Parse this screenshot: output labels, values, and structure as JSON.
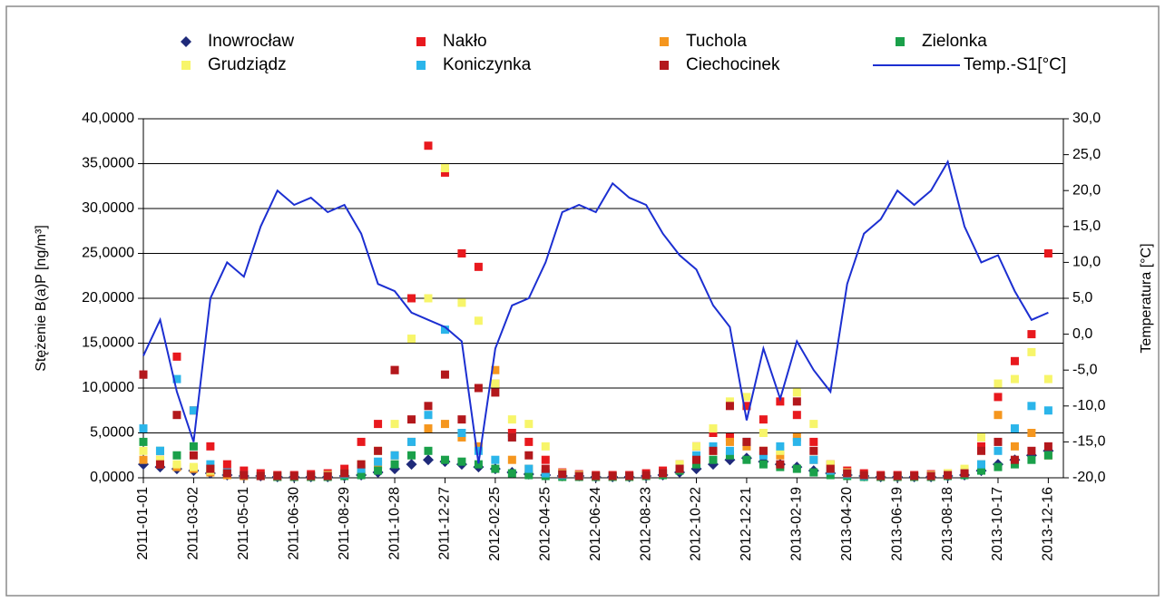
{
  "chart_data": {
    "type": "scatter",
    "ylabel": "Stężenie B(a)P [ng/m³]",
    "y2label": "Temperatura [°C]",
    "xlim": [
      "2011-01-01",
      "2014-01-03"
    ],
    "xticks": [
      "2011-01-01",
      "2011-03-02",
      "2011-05-01",
      "2011-06-30",
      "2011-08-29",
      "2011-10-28",
      "2011-12-27",
      "2012-02-25",
      "2012-04-25",
      "2012-06-24",
      "2012-08-23",
      "2012-10-22",
      "2012-12-21",
      "2013-02-19",
      "2013-04-20",
      "2013-06-19",
      "2013-08-18",
      "2013-10-17",
      "2013-12-16"
    ],
    "ylim": [
      0,
      40
    ],
    "yticks": [
      {
        "value": 0,
        "label": "0,0000"
      },
      {
        "value": 5,
        "label": "5,0000"
      },
      {
        "value": 10,
        "label": "10,0000"
      },
      {
        "value": 15,
        "label": "15,0000"
      },
      {
        "value": 20,
        "label": "20,0000"
      },
      {
        "value": 25,
        "label": "25,0000"
      },
      {
        "value": 30,
        "label": "30,0000"
      },
      {
        "value": 35,
        "label": "35,0000"
      },
      {
        "value": 40,
        "label": "40,0000"
      }
    ],
    "y2lim": [
      -20,
      30
    ],
    "y2ticks": [
      {
        "value": -20,
        "label": "-20,0"
      },
      {
        "value": -15,
        "label": "-15,0"
      },
      {
        "value": -10,
        "label": "-10,0"
      },
      {
        "value": -5,
        "label": "-5,0"
      },
      {
        "value": 0,
        "label": "0,0"
      },
      {
        "value": 5,
        "label": "5,0"
      },
      {
        "value": 10,
        "label": "10,0"
      },
      {
        "value": 15,
        "label": "15,0"
      },
      {
        "value": 20,
        "label": "20,0"
      },
      {
        "value": 25,
        "label": "25,0"
      },
      {
        "value": 30,
        "label": "30,0"
      }
    ],
    "grid": true,
    "x": [
      "2011-01-01",
      "2011-01-21",
      "2011-02-10",
      "2011-03-02",
      "2011-03-22",
      "2011-04-11",
      "2011-05-01",
      "2011-05-21",
      "2011-06-10",
      "2011-06-30",
      "2011-07-20",
      "2011-08-09",
      "2011-08-29",
      "2011-09-18",
      "2011-10-08",
      "2011-10-28",
      "2011-11-17",
      "2011-12-07",
      "2011-12-27",
      "2012-01-16",
      "2012-02-05",
      "2012-02-25",
      "2012-03-16",
      "2012-04-05",
      "2012-04-25",
      "2012-05-15",
      "2012-06-04",
      "2012-06-24",
      "2012-07-14",
      "2012-08-03",
      "2012-08-23",
      "2012-09-12",
      "2012-10-02",
      "2012-10-22",
      "2012-11-11",
      "2012-12-01",
      "2012-12-21",
      "2013-01-10",
      "2013-01-30",
      "2013-02-19",
      "2013-03-11",
      "2013-03-31",
      "2013-04-20",
      "2013-05-10",
      "2013-05-30",
      "2013-06-19",
      "2013-07-09",
      "2013-07-29",
      "2013-08-18",
      "2013-09-07",
      "2013-09-27",
      "2013-10-17",
      "2013-11-06",
      "2013-11-26",
      "2013-12-16"
    ],
    "series": [
      {
        "name": "Inowrocław",
        "color": "#1f2a7a",
        "marker": "diamond",
        "values": [
          1.5,
          1.2,
          1.0,
          0.8,
          0.5,
          0.3,
          0.2,
          0.2,
          0.1,
          0.1,
          0.1,
          0.1,
          0.2,
          0.3,
          0.6,
          1.0,
          1.5,
          2.0,
          1.8,
          1.5,
          1.2,
          1.0,
          0.6,
          0.4,
          0.3,
          0.2,
          0.2,
          0.1,
          0.1,
          0.1,
          0.2,
          0.3,
          0.6,
          1.0,
          1.5,
          2.0,
          2.2,
          1.8,
          1.5,
          1.2,
          0.8,
          0.5,
          0.3,
          0.2,
          0.1,
          0.1,
          0.1,
          0.1,
          0.2,
          0.3,
          0.8,
          1.5,
          2.0,
          2.5,
          3.0
        ]
      },
      {
        "name": "Nakło",
        "color": "#e8191e",
        "marker": "square",
        "values": [
          11.5,
          2.0,
          13.5,
          7.5,
          3.5,
          1.5,
          0.8,
          0.5,
          0.3,
          0.3,
          0.4,
          0.5,
          1.0,
          4.0,
          6.0,
          12.0,
          20.0,
          37.0,
          34.0,
          25.0,
          23.5,
          10.5,
          5.0,
          4.0,
          2.0,
          0.6,
          0.4,
          0.3,
          0.3,
          0.3,
          0.5,
          0.8,
          1.5,
          3.5,
          5.0,
          4.5,
          8.0,
          6.5,
          8.5,
          7.0,
          4.0,
          1.5,
          0.8,
          0.5,
          0.3,
          0.3,
          0.3,
          0.4,
          0.5,
          0.8,
          3.5,
          9.0,
          13.0,
          16.0,
          25.0
        ]
      },
      {
        "name": "Tuchola",
        "color": "#f5961e",
        "marker": "square",
        "values": [
          2.0,
          1.5,
          1.2,
          1.0,
          0.6,
          0.3,
          0.2,
          0.2,
          0.1,
          0.1,
          0.1,
          0.2,
          0.3,
          0.8,
          1.5,
          2.5,
          4.0,
          5.5,
          6.0,
          4.5,
          3.5,
          12.0,
          2.0,
          1.0,
          0.5,
          0.3,
          0.2,
          0.1,
          0.1,
          0.1,
          0.2,
          0.4,
          1.0,
          2.0,
          3.0,
          4.0,
          3.5,
          3.0,
          2.5,
          4.5,
          2.0,
          1.0,
          0.5,
          0.2,
          0.1,
          0.1,
          0.1,
          0.2,
          0.3,
          0.5,
          1.5,
          7.0,
          3.5,
          5.0,
          2.5
        ]
      },
      {
        "name": "Zielonka",
        "color": "#1aa04a",
        "marker": "square",
        "values": [
          4.0,
          3.0,
          2.5,
          3.5,
          1.0,
          0.5,
          0.3,
          0.2,
          0.1,
          0.1,
          0.1,
          0.1,
          0.2,
          0.3,
          0.8,
          1.5,
          2.5,
          3.0,
          2.0,
          1.8,
          1.5,
          1.0,
          0.5,
          0.3,
          0.2,
          0.1,
          0.1,
          0.1,
          0.1,
          0.1,
          0.2,
          0.3,
          0.8,
          1.5,
          2.0,
          2.5,
          2.0,
          1.5,
          1.2,
          1.0,
          0.6,
          0.3,
          0.2,
          0.1,
          0.1,
          0.1,
          0.1,
          0.1,
          0.2,
          0.3,
          0.8,
          1.2,
          1.5,
          2.0,
          2.5
        ]
      },
      {
        "name": "Grudziądz",
        "color": "#f7f56a",
        "marker": "square",
        "values": [
          3.0,
          2.0,
          1.5,
          1.2,
          0.8,
          0.5,
          0.3,
          0.2,
          0.2,
          0.2,
          0.2,
          0.3,
          0.5,
          1.5,
          3.0,
          6.0,
          15.5,
          20.0,
          34.5,
          19.5,
          17.5,
          10.5,
          6.5,
          6.0,
          3.5,
          0.5,
          0.3,
          0.2,
          0.2,
          0.2,
          0.3,
          0.5,
          1.5,
          3.5,
          5.5,
          8.5,
          9.0,
          5.0,
          3.0,
          9.5,
          6.0,
          1.5,
          0.6,
          0.3,
          0.2,
          0.2,
          0.2,
          0.3,
          0.5,
          1.0,
          4.5,
          10.5,
          11.0,
          14.0,
          11.0
        ]
      },
      {
        "name": "Koniczynka",
        "color": "#2bb5ea",
        "marker": "square",
        "values": [
          5.5,
          3.0,
          11.0,
          7.5,
          1.5,
          0.6,
          0.3,
          0.2,
          0.2,
          0.2,
          0.2,
          0.2,
          0.4,
          1.0,
          1.8,
          2.5,
          4.0,
          7.0,
          16.5,
          5.0,
          3.0,
          2.0,
          4.5,
          1.0,
          0.5,
          0.3,
          0.2,
          0.2,
          0.2,
          0.2,
          0.3,
          0.5,
          1.0,
          2.5,
          3.5,
          3.0,
          4.0,
          2.5,
          3.5,
          4.0,
          2.0,
          0.8,
          0.4,
          0.2,
          0.2,
          0.2,
          0.2,
          0.2,
          0.3,
          0.5,
          1.5,
          3.0,
          5.5,
          8.0,
          7.5
        ]
      },
      {
        "name": "Ciechocinek",
        "color": "#b3181c",
        "marker": "square",
        "values": [
          11.5,
          1.5,
          7.0,
          2.5,
          1.0,
          0.5,
          0.3,
          0.2,
          0.2,
          0.2,
          0.2,
          0.2,
          0.5,
          1.5,
          3.0,
          12.0,
          6.5,
          8.0,
          11.5,
          6.5,
          10.0,
          9.5,
          4.5,
          2.5,
          1.0,
          0.4,
          0.2,
          0.2,
          0.2,
          0.2,
          0.3,
          0.5,
          1.0,
          2.0,
          3.0,
          8.0,
          4.0,
          3.0,
          1.5,
          8.5,
          3.0,
          1.0,
          0.5,
          0.3,
          0.2,
          0.2,
          0.2,
          0.2,
          0.3,
          0.5,
          3.0,
          4.0,
          2.0,
          3.0,
          3.5
        ]
      },
      {
        "name": "Temp.-S1[°C]",
        "color": "#1c2fd1",
        "type": "line",
        "axis": "y2",
        "values": [
          -3,
          2,
          -8,
          -15,
          5,
          10,
          8,
          15,
          20,
          18,
          19,
          17,
          18,
          14,
          7,
          6,
          3,
          2,
          1,
          -1,
          -18,
          -2,
          4,
          5,
          10,
          17,
          18,
          17,
          21,
          19,
          18,
          14,
          11,
          9,
          4,
          1,
          -12,
          -2,
          -9,
          -1,
          -5,
          -8,
          7,
          14,
          16,
          20,
          18,
          20,
          24,
          15,
          10,
          11,
          6,
          2,
          3
        ]
      }
    ]
  }
}
